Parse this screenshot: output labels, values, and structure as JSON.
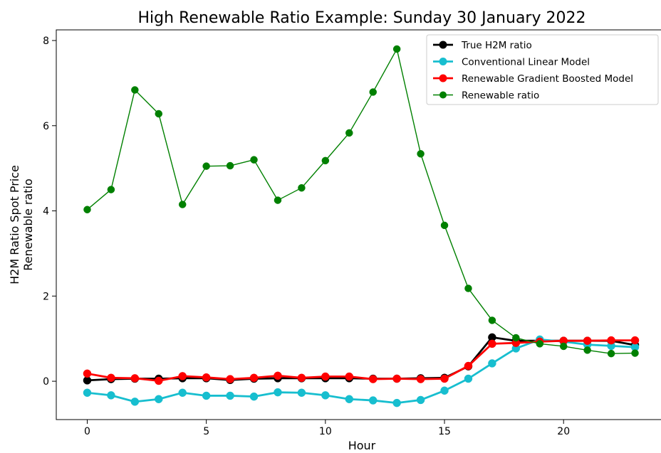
{
  "chart_data": {
    "type": "line",
    "title": "High Renewable Ratio Example: Sunday 30 January 2022",
    "xlabel": "Hour",
    "ylabel_lines": [
      "H2M Ratio Spot Price",
      "Renewable ratio"
    ],
    "xlim": [
      -1.3,
      24.3
    ],
    "ylim": [
      -0.9,
      8.25
    ],
    "xticks": [
      0,
      5,
      10,
      15,
      20
    ],
    "yticks": [
      0,
      2,
      4,
      6,
      8
    ],
    "grid": false,
    "legend_position": "top-right",
    "x": [
      0,
      1,
      2,
      3,
      4,
      5,
      6,
      7,
      8,
      9,
      10,
      11,
      12,
      13,
      14,
      15,
      16,
      17,
      18,
      19,
      20,
      21,
      22,
      23
    ],
    "series": [
      {
        "name": "True H2M ratio",
        "color": "#000000",
        "values": [
          0.02,
          0.05,
          0.06,
          0.06,
          0.07,
          0.07,
          0.03,
          0.06,
          0.07,
          0.07,
          0.07,
          0.07,
          0.06,
          0.06,
          0.07,
          0.08,
          0.35,
          1.03,
          0.95,
          0.95,
          0.95,
          0.95,
          0.95,
          0.85
        ]
      },
      {
        "name": "Conventional Linear Model",
        "color": "#17becf",
        "values": [
          -0.27,
          -0.33,
          -0.48,
          -0.42,
          -0.27,
          -0.34,
          -0.34,
          -0.36,
          -0.26,
          -0.27,
          -0.33,
          -0.42,
          -0.45,
          -0.51,
          -0.44,
          -0.22,
          0.06,
          0.42,
          0.77,
          0.98,
          0.93,
          0.86,
          0.83,
          0.8
        ]
      },
      {
        "name": "Renewable Gradient Boosted Model",
        "color": "#ff0000",
        "values": [
          0.18,
          0.08,
          0.07,
          0.01,
          0.12,
          0.09,
          0.05,
          0.08,
          0.13,
          0.08,
          0.11,
          0.11,
          0.05,
          0.06,
          0.05,
          0.06,
          0.36,
          0.88,
          0.9,
          0.93,
          0.95,
          0.95,
          0.96,
          0.96
        ]
      },
      {
        "name": "Renewable ratio",
        "color": "#008000",
        "values": [
          4.03,
          4.5,
          6.84,
          6.28,
          4.15,
          5.05,
          5.06,
          5.2,
          4.25,
          4.54,
          5.18,
          5.83,
          6.79,
          7.8,
          5.34,
          3.66,
          2.18,
          1.43,
          1.02,
          0.88,
          0.82,
          0.73,
          0.65,
          0.66
        ]
      }
    ]
  }
}
